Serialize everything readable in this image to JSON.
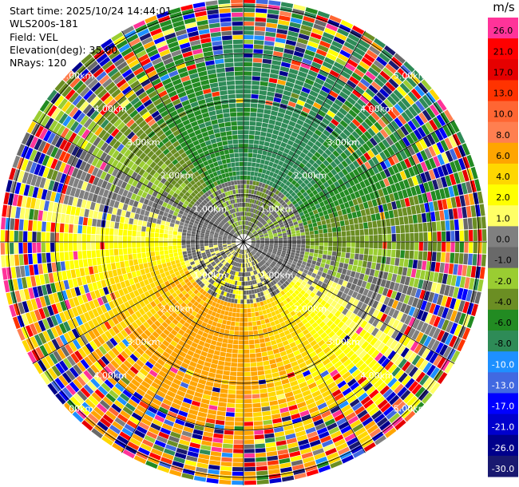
{
  "header": {
    "start_time": "Start time: 2025/10/24 14:44:01",
    "instrument": "WLS200s-181",
    "field": "Field: VEL",
    "elevation": "Elevation(deg): 35.00",
    "nrays": "NRays: 120"
  },
  "colorbar": {
    "units": "m/s",
    "levels": [
      {
        "label": "26.0",
        "color": "#ff3399"
      },
      {
        "label": "21.0",
        "color": "#ff0000"
      },
      {
        "label": "17.0",
        "color": "#e60000"
      },
      {
        "label": "13.0",
        "color": "#ff3300"
      },
      {
        "label": "10.0",
        "color": "#ff6633"
      },
      {
        "label": "8.0",
        "color": "#ff7f50"
      },
      {
        "label": "6.0",
        "color": "#ffa500"
      },
      {
        "label": "4.0",
        "color": "#ffd700"
      },
      {
        "label": "2.0",
        "color": "#ffff00"
      },
      {
        "label": "1.0",
        "color": "#ffff66"
      },
      {
        "label": "0.0",
        "color": "#808080"
      },
      {
        "label": "-1.0",
        "color": "#696969"
      },
      {
        "label": "-2.0",
        "color": "#9acd32"
      },
      {
        "label": "-4.0",
        "color": "#6b8e23"
      },
      {
        "label": "-6.0",
        "color": "#228b22"
      },
      {
        "label": "-8.0",
        "color": "#2e8b57"
      },
      {
        "label": "-10.0",
        "color": "#1e90ff"
      },
      {
        "label": "-13.0",
        "color": "#4169e1"
      },
      {
        "label": "-17.0",
        "color": "#0000ff"
      },
      {
        "label": "-21.0",
        "color": "#0000cd"
      },
      {
        "label": "-26.0",
        "color": "#00008b"
      },
      {
        "label": "-30.0",
        "color": "#191970"
      }
    ]
  },
  "chart_data": {
    "type": "heatmap",
    "projection": "polar",
    "field": "VEL",
    "nrays": 120,
    "range_rings_km": [
      1.0,
      2.0,
      3.0,
      4.0,
      5.0
    ],
    "ring_labels": [
      "1.00km",
      "2.00km",
      "3.00km",
      "4.00km",
      "5.00km"
    ],
    "max_range_km": 5.0,
    "angular_grid_deg": 30,
    "colorbar_range": [
      -30.0,
      26.0
    ]
  }
}
